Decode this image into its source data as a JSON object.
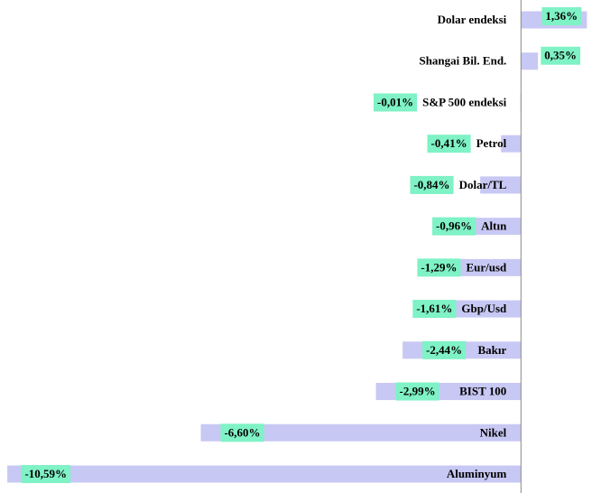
{
  "chart_data": {
    "type": "barh",
    "categories": [
      "Dolar endeksi",
      "Shangai Bil. End.",
      "S&P 500 endeksi",
      "Petrol",
      "Dolar/TL",
      "Altın",
      "Eur/usd",
      "Gbp/Usd",
      "Bakır",
      "BIST 100",
      "Nikel",
      "Aluminyum"
    ],
    "values": [
      1.36,
      0.35,
      -0.01,
      -0.41,
      -0.84,
      -0.96,
      -1.29,
      -1.61,
      -2.44,
      -2.99,
      -6.6,
      -10.59
    ],
    "value_labels": [
      "1,36%",
      "0,35%",
      "-0,01%",
      "-0,41%",
      "-0,84%",
      "-0,96%",
      "-1,29%",
      "-1,61%",
      "-2,44%",
      "-2,99%",
      "-6,60%",
      "-10,59%"
    ],
    "color": "#c8c8f4",
    "label_color": "#7ff2c6",
    "xlim": [
      -10.74,
      1.65
    ]
  }
}
